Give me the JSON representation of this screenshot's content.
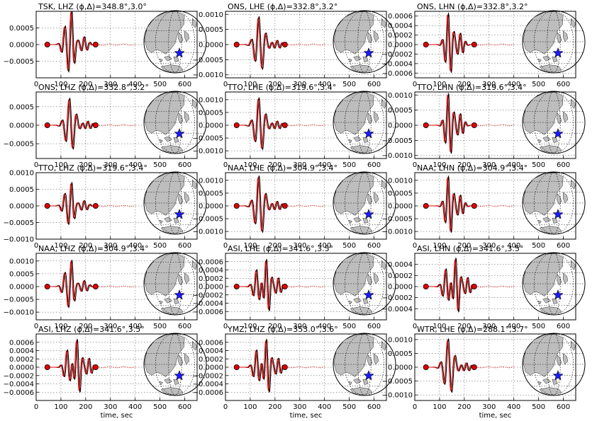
{
  "figure": {
    "xlabel": "time, sec"
  },
  "chart_data": [
    {
      "type": "line",
      "title": "TSK, LHZ (ϕ,Δ)=348.8°,3.0°",
      "xlim": [
        0,
        650
      ],
      "xticks": [
        "0",
        "100",
        "200",
        "300",
        "400",
        "500",
        "600"
      ],
      "ylim": [
        -0.001,
        0.001
      ],
      "yticks": [
        "−0.0005",
        "0.0000",
        "0.0005"
      ],
      "ytick_values": [
        -0.0005,
        0,
        0.0005
      ],
      "amplitude": 0.00095,
      "pattern": "A",
      "marker_times": [
        45,
        240
      ],
      "series": [
        {
          "name": "",
          "color": "#000000"
        },
        {
          "name": "",
          "color": "#e00000"
        }
      ]
    },
    {
      "type": "line",
      "title": "ONS, LHE (ϕ,Δ)=332.8°,3.2°",
      "xlim": [
        0,
        650
      ],
      "xticks": [
        "0",
        "100",
        "200",
        "300",
        "400",
        "500",
        "600"
      ],
      "ylim": [
        -0.0011,
        0.0011
      ],
      "yticks": [
        "−0.0010",
        "−0.0005",
        "0.0000",
        "0.0005",
        "0.0010"
      ],
      "ytick_values": [
        -0.001,
        -0.0005,
        0,
        0.0005,
        0.001
      ],
      "amplitude": 0.00095,
      "pattern": "B",
      "marker_times": [
        45,
        240
      ],
      "series": [
        {
          "name": "",
          "color": "#000000"
        },
        {
          "name": "",
          "color": "#e00000"
        }
      ]
    },
    {
      "type": "line",
      "title": "ONS, LHN (ϕ,Δ)=332.8°,3.2°",
      "xlim": [
        0,
        650
      ],
      "xticks": [
        "0",
        "100",
        "200",
        "300",
        "400",
        "500",
        "600"
      ],
      "ylim": [
        -0.0007,
        0.0007
      ],
      "yticks": [
        "−0.0006",
        "−0.0004",
        "−0.0002",
        "0.0000",
        "0.0002",
        "0.0004",
        "0.0006"
      ],
      "ytick_values": [
        -0.0006,
        -0.0004,
        -0.0002,
        0,
        0.0002,
        0.0004,
        0.0006
      ],
      "amplitude": 0.00068,
      "pattern": "C",
      "marker_times": [
        45,
        240
      ],
      "series": [
        {
          "name": "",
          "color": "#000000"
        },
        {
          "name": "",
          "color": "#e00000"
        }
      ]
    },
    {
      "type": "line",
      "title": "ONS, LHZ (ϕ,Δ)=332.8°,3.2°",
      "xlim": [
        0,
        650
      ],
      "xticks": [
        "0",
        "100",
        "200",
        "300",
        "400",
        "500",
        "600"
      ],
      "ylim": [
        -0.0009,
        0.0009
      ],
      "yticks": [
        "−0.0005",
        "0.0000",
        "0.0005"
      ],
      "ytick_values": [
        -0.0005,
        0,
        0.0005
      ],
      "amplitude": 0.00075,
      "pattern": "B",
      "marker_times": [
        45,
        240
      ],
      "series": [
        {
          "name": "",
          "color": "#000000"
        },
        {
          "name": "",
          "color": "#e00000"
        }
      ]
    },
    {
      "type": "line",
      "title": "TTO, LHE (ϕ,Δ)=319.6°,3.4°",
      "xlim": [
        0,
        650
      ],
      "xticks": [
        "0",
        "100",
        "200",
        "300",
        "400",
        "500",
        "600"
      ],
      "ylim": [
        -0.0013,
        0.0013
      ],
      "yticks": [
        "−0.0010",
        "−0.0005",
        "0.0000",
        "0.0005",
        "0.0010"
      ],
      "ytick_values": [
        -0.001,
        -0.0005,
        0,
        0.0005,
        0.001
      ],
      "amplitude": 0.0011,
      "pattern": "B",
      "marker_times": [
        45,
        240
      ],
      "series": [
        {
          "name": "",
          "color": "#000000"
        },
        {
          "name": "",
          "color": "#e00000"
        }
      ]
    },
    {
      "type": "line",
      "title": "TTO, LHN (ϕ,Δ)=319.6°,3.4°",
      "xlim": [
        0,
        650
      ],
      "xticks": [
        "0",
        "100",
        "200",
        "300",
        "400",
        "500",
        "600"
      ],
      "ylim": [
        -0.0011,
        0.0011
      ],
      "yticks": [
        "−0.0010",
        "−0.0005",
        "0.0000",
        "0.0005",
        "0.0010"
      ],
      "ytick_values": [
        -0.001,
        -0.0005,
        0,
        0.0005,
        0.001
      ],
      "amplitude": 0.00108,
      "pattern": "C",
      "marker_times": [
        45,
        240
      ],
      "series": [
        {
          "name": "",
          "color": "#000000"
        },
        {
          "name": "",
          "color": "#e00000"
        }
      ]
    },
    {
      "type": "line",
      "title": "TTO, LHZ (ϕ,Δ)=319.6°,3.4°",
      "xlim": [
        0,
        650
      ],
      "xticks": [
        "0",
        "100",
        "200",
        "300",
        "400",
        "500",
        "600"
      ],
      "ylim": [
        -0.001,
        0.001
      ],
      "yticks": [
        "−0.0010",
        "−0.0005",
        "0.0000",
        "0.0005",
        "0.0010"
      ],
      "ytick_values": [
        -0.001,
        -0.0005,
        0,
        0.0005,
        0.001
      ],
      "amplitude": 0.00065,
      "pattern": "A",
      "marker_times": [
        45,
        240
      ],
      "series": [
        {
          "name": "",
          "color": "#000000"
        },
        {
          "name": "",
          "color": "#e00000"
        }
      ]
    },
    {
      "type": "line",
      "title": "NAA, LHE (ϕ,Δ)=304.9°,3.4°",
      "xlim": [
        0,
        650
      ],
      "xticks": [
        "0",
        "100",
        "200",
        "300",
        "400",
        "500",
        "600"
      ],
      "ylim": [
        -0.0013,
        0.0013
      ],
      "yticks": [
        "−0.0010",
        "−0.0005",
        "0.0000",
        "0.0005",
        "0.0010"
      ],
      "ytick_values": [
        -0.001,
        -0.0005,
        0,
        0.0005,
        0.001
      ],
      "amplitude": 0.0012,
      "pattern": "B",
      "marker_times": [
        45,
        240
      ],
      "series": [
        {
          "name": "",
          "color": "#000000"
        },
        {
          "name": "",
          "color": "#e00000"
        }
      ]
    },
    {
      "type": "line",
      "title": "NAA, LHN (ϕ,Δ)=304.9°,3.4°",
      "xlim": [
        0,
        650
      ],
      "xticks": [
        "0",
        "100",
        "200",
        "300",
        "400",
        "500",
        "600"
      ],
      "ylim": [
        -0.0013,
        0.0013
      ],
      "yticks": [
        "−0.0010",
        "−0.0005",
        "0.0000",
        "0.0005",
        "0.0010"
      ],
      "ytick_values": [
        -0.001,
        -0.0005,
        0,
        0.0005,
        0.001
      ],
      "amplitude": 0.0012,
      "pattern": "C",
      "marker_times": [
        45,
        240
      ],
      "series": [
        {
          "name": "",
          "color": "#000000"
        },
        {
          "name": "",
          "color": "#e00000"
        }
      ]
    },
    {
      "type": "line",
      "title": "NAA, LHZ (ϕ,Δ)=304.9°,3.4°",
      "xlim": [
        0,
        650
      ],
      "xticks": [
        "0",
        "100",
        "200",
        "300",
        "400",
        "500",
        "600"
      ],
      "ylim": [
        -0.0013,
        0.0013
      ],
      "yticks": [
        "−0.0010",
        "−0.0005",
        "0.0000",
        "0.0005",
        "0.0010"
      ],
      "ytick_values": [
        -0.001,
        -0.0005,
        0,
        0.0005,
        0.001
      ],
      "amplitude": 0.00095,
      "pattern": "A",
      "marker_times": [
        45,
        240
      ],
      "series": [
        {
          "name": "",
          "color": "#000000"
        },
        {
          "name": "",
          "color": "#e00000"
        }
      ]
    },
    {
      "type": "line",
      "title": "ASI, LHE (ϕ,Δ)=341.6°,3.5°",
      "xlim": [
        0,
        650
      ],
      "xticks": [
        "0",
        "100",
        "200",
        "300",
        "400",
        "500",
        "600"
      ],
      "ylim": [
        -0.0008,
        0.0008
      ],
      "yticks": [
        "−0.0006",
        "−0.0004",
        "−0.0002",
        "0.0000",
        "0.0002",
        "0.0004",
        "0.0006"
      ],
      "ytick_values": [
        -0.0006,
        -0.0004,
        -0.0002,
        0,
        0.0002,
        0.0004,
        0.0006
      ],
      "amplitude": 0.0007,
      "pattern": "D",
      "marker_times": [
        45,
        240
      ],
      "series": [
        {
          "name": "",
          "color": "#000000"
        },
        {
          "name": "",
          "color": "#e00000"
        }
      ]
    },
    {
      "type": "line",
      "title": "ASI, LHN (ϕ,Δ)=341.6°,3.5°",
      "xlim": [
        0,
        650
      ],
      "xticks": [
        "0",
        "100",
        "200",
        "300",
        "400",
        "500",
        "600"
      ],
      "ylim": [
        -0.0006,
        0.0006
      ],
      "yticks": [
        "−0.0004",
        "−0.0002",
        "0.0000",
        "0.0002",
        "0.0004"
      ],
      "ytick_values": [
        -0.0004,
        -0.0002,
        0,
        0.0002,
        0.0004
      ],
      "amplitude": 0.00055,
      "pattern": "D",
      "marker_times": [
        45,
        240
      ],
      "series": [
        {
          "name": "",
          "color": "#000000"
        },
        {
          "name": "",
          "color": "#e00000"
        }
      ]
    },
    {
      "type": "line",
      "title": "ASI, LHZ (ϕ,Δ)=341.6°,3.5°",
      "xlim": [
        0,
        650
      ],
      "xticks": [
        "0",
        "100",
        "200",
        "300",
        "400",
        "500",
        "600"
      ],
      "ylim": [
        -0.0008,
        0.0008
      ],
      "yticks": [
        "−0.0006",
        "−0.0004",
        "−0.0002",
        "0.0000",
        "0.0002",
        "0.0004",
        "0.0006"
      ],
      "ytick_values": [
        -0.0006,
        -0.0004,
        -0.0002,
        0,
        0.0002,
        0.0004,
        0.0006
      ],
      "amplitude": 0.00072,
      "pattern": "D",
      "marker_times": [
        45,
        240
      ],
      "series": [
        {
          "name": "",
          "color": "#000000"
        },
        {
          "name": "",
          "color": "#e00000"
        }
      ]
    },
    {
      "type": "line",
      "title": "YMZ, LHZ (ϕ,Δ)=353.0°,3.6°",
      "xlim": [
        0,
        650
      ],
      "xticks": [
        "0",
        "100",
        "200",
        "300",
        "400",
        "500",
        "600"
      ],
      "ylim": [
        -0.0008,
        0.0008
      ],
      "yticks": [
        "−0.0006",
        "−0.0004",
        "−0.0002",
        "0.0000",
        "0.0002",
        "0.0004",
        "0.0006"
      ],
      "ytick_values": [
        -0.0006,
        -0.0004,
        -0.0002,
        0,
        0.0002,
        0.0004,
        0.0006
      ],
      "amplitude": 0.00072,
      "pattern": "D",
      "marker_times": [
        45,
        240
      ],
      "series": [
        {
          "name": "",
          "color": "#000000"
        },
        {
          "name": "",
          "color": "#e00000"
        }
      ]
    },
    {
      "type": "line",
      "title": "WTR, LHE (ϕ,Δ)=288.1°,3.7°",
      "xlim": [
        0,
        650
      ],
      "xticks": [
        "0",
        "100",
        "200",
        "300",
        "400",
        "500",
        "600"
      ],
      "ylim": [
        -0.0012,
        0.0012
      ],
      "yticks": [
        "−0.0010",
        "−0.0005",
        "0.0000",
        "0.0005",
        "0.0010"
      ],
      "ytick_values": [
        -0.001,
        -0.0005,
        0,
        0.0005,
        0.001
      ],
      "amplitude": 0.00105,
      "pattern": "B",
      "marker_times": [
        45,
        240
      ],
      "series": [
        {
          "name": "",
          "color": "#000000"
        },
        {
          "name": "",
          "color": "#e00000"
        }
      ]
    }
  ]
}
